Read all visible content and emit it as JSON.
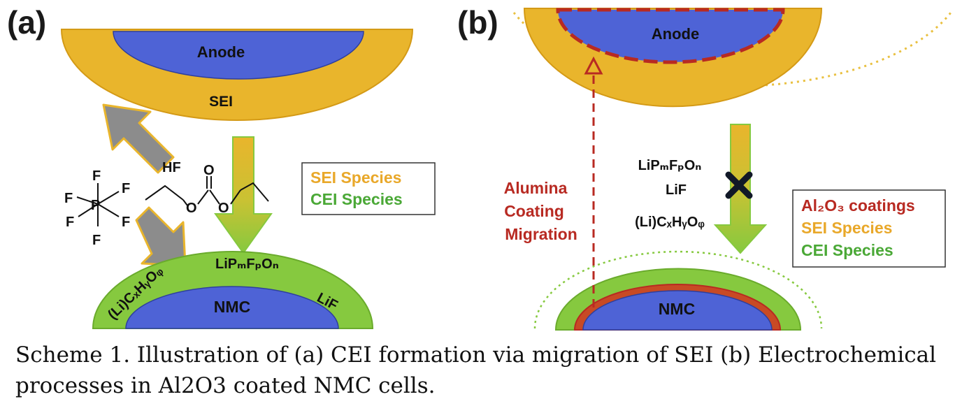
{
  "panel_a": {
    "tag": "(a)",
    "anode_label": "Anode",
    "sei_label": "SEI",
    "hf_label": "HF",
    "nmc_label": "NMC",
    "lif_label": "LiF",
    "lipf_label": "LiPₘFₚOₙ",
    "licxhyoz_label": "(Li)CₓHᵧOᵩ",
    "pf6_f_label": "F",
    "pf6_p_label": "P",
    "carbonate_o_label": "O",
    "legend": {
      "sei": "SEI Species",
      "cei": "CEI Species"
    }
  },
  "panel_b": {
    "tag": "(b)",
    "anode_label": "Anode",
    "nmc_label": "NMC",
    "species": [
      "LiPₘFₚOₙ",
      "LiF",
      "(Li)CₓHᵧOᵩ"
    ],
    "migration_label": [
      "Alumina",
      "Coating",
      "Migration"
    ],
    "legend": {
      "al2o3": "Al₂O₃ coatings",
      "sei": "SEI Species",
      "cei": "CEI Species"
    }
  },
  "colors": {
    "anode": "#4e63d6",
    "sei": "#e9b52c",
    "cei": "#86c93f",
    "nmc": "#4e63d6",
    "al2o3": "#b82a22",
    "arrow_gray": "#8c8c8c",
    "legend_sei": "#e9a82a",
    "legend_cei": "#4aa836"
  },
  "caption": "Scheme 1. Illustration of (a) CEI formation via migration of SEI (b) Electrochemical processes in Al2O3 coated NMC cells."
}
